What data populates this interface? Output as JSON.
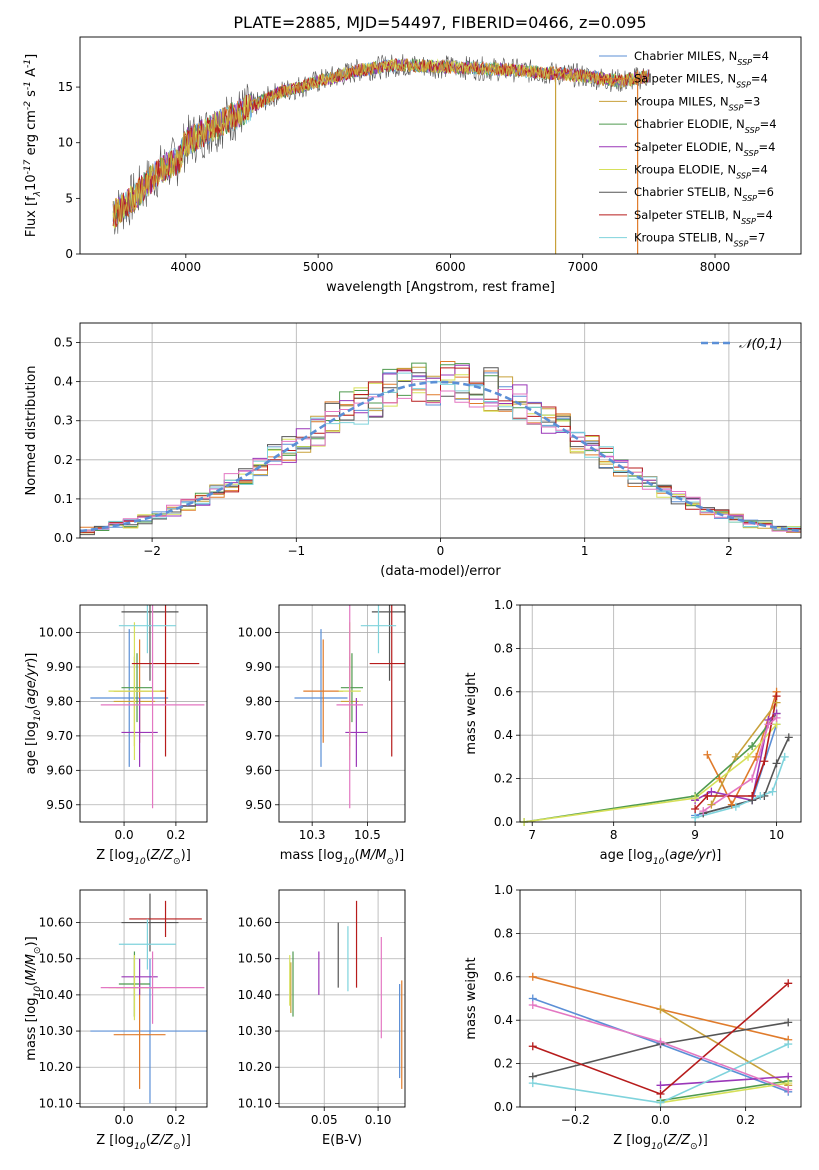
{
  "figure_title": "PLATE=2885, MJD=54497, FIBERID=0466, z=0.095",
  "chart_data": [
    {
      "id": "spectrum",
      "type": "line",
      "xlabel": "wavelength [Angstrom, rest frame]",
      "ylabel": "Flux [f$_\\lambda$10$^{-17}$ erg cm$^{-2}$ s$^{-1}$ A$^{-1}$]",
      "xlim": [
        3200,
        8650
      ],
      "ylim": [
        0,
        19.5
      ],
      "xticks": [
        4000,
        5000,
        6000,
        7000,
        8000
      ],
      "yticks": [
        0,
        5,
        10,
        15
      ],
      "grid": false,
      "legend_position": "top-right",
      "series": [
        {
          "name": "Chabrier MILES, N$_{SSP}$=4",
          "color": "#5b8fd6"
        },
        {
          "name": "Salpeter MILES, N$_{SSP}$=4",
          "color": "#e07b2b"
        },
        {
          "name": "Kroupa MILES, N$_{SSP}$=3",
          "color": "#c8a13a"
        },
        {
          "name": "Chabrier ELODIE, N$_{SSP}$=4",
          "color": "#4f9a4f"
        },
        {
          "name": "Salpeter ELODIE, N$_{SSP}$=4",
          "color": "#9a37b8"
        },
        {
          "name": "Kroupa ELODIE, N$_{SSP}$=4",
          "color": "#d6e05a"
        },
        {
          "name": "Chabrier STELIB, N$_{SSP}$=6",
          "color": "#555555"
        },
        {
          "name": "Salpeter STELIB, N$_{SSP}$=4",
          "color": "#b71c1c"
        },
        {
          "name": "Kroupa STELIB, N$_{SSP}$=7",
          "color": "#7fd3dc"
        }
      ],
      "continuum": {
        "x": [
          3450,
          3600,
          3800,
          3950,
          4000,
          4300,
          4700,
          5000,
          5300,
          5600,
          6000,
          6500,
          6800,
          7000,
          7300,
          7500
        ],
        "y": [
          3.5,
          5.0,
          7.5,
          8.5,
          10.0,
          12.0,
          14.5,
          15.5,
          16.5,
          17.0,
          16.8,
          16.5,
          16.2,
          16.0,
          15.5,
          16.0
        ]
      }
    },
    {
      "id": "residuals",
      "type": "line",
      "xlabel": "(data-model)/error",
      "ylabel": "Normed distribution",
      "xlim": [
        -2.5,
        2.5
      ],
      "ylim": [
        0,
        0.55
      ],
      "xticks": [
        -2,
        -1,
        0,
        1,
        2
      ],
      "yticks": [
        0.0,
        0.1,
        0.2,
        0.3,
        0.4,
        0.5
      ],
      "grid": true,
      "legend_position": "top-right",
      "reference_curve": {
        "name": "$\\mathcal{N}(0,1)$",
        "mean": 0,
        "sigma": 1,
        "color": "#5b8fd6"
      }
    },
    {
      "id": "age-vs-Z",
      "type": "scatter",
      "xlabel": "Z [log$_{10}$($Z/Z_\\odot$)]",
      "ylabel": "age  [log$_{10}$($age/yr$)]",
      "xlim": [
        -0.17,
        0.32
      ],
      "ylim": [
        9.45,
        10.08
      ],
      "xticks": [
        0.0,
        0.2
      ],
      "yticks": [
        9.5,
        9.6,
        9.7,
        9.8,
        9.9,
        10.0
      ],
      "grid": true,
      "points": [
        {
          "x": 0.02,
          "y": 9.81,
          "xerr": 0.15,
          "yerr": 0.2,
          "color": "#5b8fd6"
        },
        {
          "x": 0.06,
          "y": 9.83,
          "xerr": 0.1,
          "yerr": 0.15,
          "color": "#e07b2b"
        },
        {
          "x": 0.04,
          "y": 9.8,
          "xerr": 0.08,
          "yerr": 0.13,
          "color": "#c8a13a"
        },
        {
          "x": 0.05,
          "y": 9.84,
          "xerr": 0.06,
          "yerr": 0.1,
          "color": "#4f9a4f"
        },
        {
          "x": 0.06,
          "y": 9.71,
          "xerr": 0.07,
          "yerr": 0.1,
          "color": "#9a37b8"
        },
        {
          "x": 0.04,
          "y": 9.83,
          "xerr": 0.1,
          "yerr": 0.2,
          "color": "#d6e05a"
        },
        {
          "x": 0.1,
          "y": 10.06,
          "xerr": 0.11,
          "yerr": 0.2,
          "color": "#555555"
        },
        {
          "x": 0.16,
          "y": 9.91,
          "xerr": 0.13,
          "yerr": 0.27,
          "color": "#b71c1c"
        },
        {
          "x": 0.09,
          "y": 10.02,
          "xerr": 0.11,
          "yerr": 0.08,
          "color": "#7fd3dc"
        },
        {
          "x": 0.11,
          "y": 9.79,
          "xerr": 0.2,
          "yerr": 0.3,
          "color": "#e377c2"
        }
      ]
    },
    {
      "id": "age-vs-mass",
      "type": "scatter",
      "xlabel": "mass [log$_{10}$($M/M_\\odot$)]",
      "ylabel": "",
      "xlim": [
        10.1,
        10.67
      ],
      "ylim": [
        9.45,
        10.08
      ],
      "xticks": [
        10.25,
        10.5
      ],
      "yticks": [
        9.5,
        9.6,
        9.7,
        9.8,
        9.9,
        10.0
      ],
      "grid": true,
      "points": [
        {
          "x": 10.29,
          "y": 9.81,
          "xerr": 0.12,
          "yerr": 0.2,
          "color": "#5b8fd6"
        },
        {
          "x": 10.3,
          "y": 9.83,
          "xerr": 0.09,
          "yerr": 0.15,
          "color": "#e07b2b"
        },
        {
          "x": 10.42,
          "y": 9.8,
          "xerr": 0.04,
          "yerr": 0.13,
          "color": "#c8a13a"
        },
        {
          "x": 10.43,
          "y": 9.84,
          "xerr": 0.05,
          "yerr": 0.1,
          "color": "#4f9a4f"
        },
        {
          "x": 10.45,
          "y": 9.71,
          "xerr": 0.05,
          "yerr": 0.1,
          "color": "#9a37b8"
        },
        {
          "x": 10.42,
          "y": 9.83,
          "xerr": 0.05,
          "yerr": 0.2,
          "color": "#d6e05a"
        },
        {
          "x": 10.6,
          "y": 10.06,
          "xerr": 0.08,
          "yerr": 0.2,
          "color": "#555555"
        },
        {
          "x": 10.61,
          "y": 9.91,
          "xerr": 0.1,
          "yerr": 0.27,
          "color": "#b71c1c"
        },
        {
          "x": 10.55,
          "y": 10.02,
          "xerr": 0.08,
          "yerr": 0.08,
          "color": "#7fd3dc"
        },
        {
          "x": 10.42,
          "y": 9.79,
          "xerr": 0.06,
          "yerr": 0.3,
          "color": "#e377c2"
        }
      ]
    },
    {
      "id": "mass-weight-vs-age",
      "type": "line",
      "xlabel": "age  [log$_{10}$($age/yr$)]",
      "ylabel": "mass weight",
      "xlim": [
        6.85,
        10.3
      ],
      "ylim": [
        0,
        1
      ],
      "xticks": [
        7,
        8,
        9,
        10
      ],
      "yticks": [
        0.0,
        0.2,
        0.4,
        0.6,
        0.8,
        1.0
      ],
      "grid": true,
      "series": [
        {
          "color": "#5b8fd6",
          "x": [
            9.0,
            9.7,
            10.0
          ],
          "y": [
            0.03,
            0.1,
            0.45
          ]
        },
        {
          "color": "#e07b2b",
          "x": [
            9.15,
            9.3,
            9.45,
            9.75,
            10.0
          ],
          "y": [
            0.31,
            0.2,
            0.08,
            0.3,
            0.6
          ]
        },
        {
          "color": "#c8a13a",
          "x": [
            9.2,
            9.5,
            10.0
          ],
          "y": [
            0.08,
            0.3,
            0.55
          ]
        },
        {
          "color": "#4f9a4f",
          "x": [
            6.9,
            9.0,
            9.7,
            10.0
          ],
          "y": [
            0.0,
            0.12,
            0.35,
            0.5
          ]
        },
        {
          "color": "#9a37b8",
          "x": [
            9.0,
            9.2,
            9.7,
            9.9,
            10.0
          ],
          "y": [
            0.1,
            0.14,
            0.1,
            0.47,
            0.5
          ]
        },
        {
          "color": "#d6e05a",
          "x": [
            6.9,
            9.0,
            9.65,
            10.0
          ],
          "y": [
            0.0,
            0.11,
            0.3,
            0.45
          ]
        },
        {
          "color": "#555555",
          "x": [
            9.1,
            9.7,
            9.85,
            10.0,
            10.15
          ],
          "y": [
            0.04,
            0.1,
            0.12,
            0.27,
            0.39
          ]
        },
        {
          "color": "#b71c1c",
          "x": [
            9.0,
            9.15,
            9.7,
            9.85,
            10.0
          ],
          "y": [
            0.06,
            0.12,
            0.12,
            0.28,
            0.58
          ]
        },
        {
          "color": "#7fd3dc",
          "x": [
            9.0,
            9.5,
            9.8,
            9.95,
            10.1
          ],
          "y": [
            0.02,
            0.07,
            0.12,
            0.14,
            0.3
          ]
        },
        {
          "color": "#e377c2",
          "x": [
            9.1,
            9.7,
            9.9,
            10.0
          ],
          "y": [
            0.05,
            0.2,
            0.45,
            0.48
          ]
        }
      ]
    },
    {
      "id": "mass-vs-Z",
      "type": "scatter",
      "xlabel": "Z [log$_{10}$($Z/Z_\\odot$)]",
      "ylabel": "mass [log$_{10}$($M/M_\\odot$)]",
      "xlim": [
        -0.17,
        0.32
      ],
      "ylim": [
        10.09,
        10.69
      ],
      "xticks": [
        0.0,
        0.2
      ],
      "yticks": [
        10.1,
        10.2,
        10.3,
        10.4,
        10.5,
        10.6
      ],
      "grid": true,
      "points": [
        {
          "x": 0.1,
          "y": 10.3,
          "xerr": 0.23,
          "yerr": 0.2,
          "color": "#5b8fd6"
        },
        {
          "x": 0.06,
          "y": 10.29,
          "xerr": 0.1,
          "yerr": 0.15,
          "color": "#e07b2b"
        },
        {
          "x": 0.04,
          "y": 10.42,
          "xerr": 0.07,
          "yerr": 0.08,
          "color": "#c8a13a"
        },
        {
          "x": 0.04,
          "y": 10.43,
          "xerr": 0.06,
          "yerr": 0.09,
          "color": "#4f9a4f"
        },
        {
          "x": 0.06,
          "y": 10.45,
          "xerr": 0.07,
          "yerr": 0.05,
          "color": "#9a37b8"
        },
        {
          "x": 0.04,
          "y": 10.42,
          "xerr": 0.1,
          "yerr": 0.09,
          "color": "#d6e05a"
        },
        {
          "x": 0.1,
          "y": 10.6,
          "xerr": 0.11,
          "yerr": 0.08,
          "color": "#555555"
        },
        {
          "x": 0.16,
          "y": 10.61,
          "xerr": 0.14,
          "yerr": 0.05,
          "color": "#b71c1c"
        },
        {
          "x": 0.09,
          "y": 10.54,
          "xerr": 0.11,
          "yerr": 0.07,
          "color": "#7fd3dc"
        },
        {
          "x": 0.11,
          "y": 10.42,
          "xerr": 0.2,
          "yerr": 0.1,
          "color": "#e377c2"
        }
      ]
    },
    {
      "id": "mass-vs-EBV",
      "type": "scatter",
      "xlabel": "E(B-V)",
      "ylabel": "",
      "xlim": [
        0.008,
        0.125
      ],
      "ylim": [
        10.09,
        10.69
      ],
      "xticks": [
        0.05,
        0.1
      ],
      "yticks": [
        10.1,
        10.2,
        10.3,
        10.4,
        10.5,
        10.6
      ],
      "grid": true,
      "points": [
        {
          "x": 0.12,
          "y": 10.3,
          "yerr": 0.13,
          "color": "#5b8fd6"
        },
        {
          "x": 0.122,
          "y": 10.29,
          "yerr": 0.15,
          "color": "#e07b2b"
        },
        {
          "x": 0.019,
          "y": 10.42,
          "yerr": 0.07,
          "color": "#c8a13a"
        },
        {
          "x": 0.021,
          "y": 10.43,
          "yerr": 0.09,
          "color": "#4f9a4f"
        },
        {
          "x": 0.045,
          "y": 10.46,
          "yerr": 0.06,
          "color": "#9a37b8"
        },
        {
          "x": 0.018,
          "y": 10.44,
          "yerr": 0.07,
          "color": "#d6e05a"
        },
        {
          "x": 0.063,
          "y": 10.51,
          "yerr": 0.09,
          "color": "#555555"
        },
        {
          "x": 0.08,
          "y": 10.54,
          "yerr": 0.12,
          "color": "#b71c1c"
        },
        {
          "x": 0.072,
          "y": 10.5,
          "yerr": 0.09,
          "color": "#7fd3dc"
        },
        {
          "x": 0.103,
          "y": 10.42,
          "yerr": 0.14,
          "color": "#e377c2"
        }
      ]
    },
    {
      "id": "mass-weight-vs-Z",
      "type": "line",
      "xlabel": "Z [log$_{10}$($Z/Z_\\odot$)]",
      "ylabel": "mass weight",
      "xlim": [
        -0.33,
        0.33
      ],
      "ylim": [
        0,
        1
      ],
      "xticks": [
        -0.2,
        0.0,
        0.2
      ],
      "yticks": [
        0.0,
        0.2,
        0.4,
        0.6,
        0.8,
        1.0
      ],
      "grid": true,
      "series": [
        {
          "color": "#5b8fd6",
          "x": [
            -0.3,
            0.0,
            0.3
          ],
          "y": [
            0.5,
            0.29,
            0.07
          ]
        },
        {
          "color": "#e07b2b",
          "x": [
            -0.3,
            0.0,
            0.3
          ],
          "y": [
            0.6,
            0.45,
            0.31
          ]
        },
        {
          "color": "#c8a13a",
          "x": [
            0.0,
            0.3
          ],
          "y": [
            0.45,
            0.1
          ]
        },
        {
          "color": "#4f9a4f",
          "x": [
            0.0,
            0.3
          ],
          "y": [
            0.03,
            0.12
          ]
        },
        {
          "color": "#9a37b8",
          "x": [
            0.0,
            0.3
          ],
          "y": [
            0.1,
            0.14
          ]
        },
        {
          "color": "#d6e05a",
          "x": [
            0.0,
            0.3
          ],
          "y": [
            0.02,
            0.11
          ]
        },
        {
          "color": "#555555",
          "x": [
            -0.3,
            0.0,
            0.3
          ],
          "y": [
            0.14,
            0.29,
            0.39
          ]
        },
        {
          "color": "#b71c1c",
          "x": [
            -0.3,
            0.0,
            0.3
          ],
          "y": [
            0.28,
            0.06,
            0.57
          ]
        },
        {
          "color": "#7fd3dc",
          "x": [
            -0.3,
            0.0,
            0.3
          ],
          "y": [
            0.11,
            0.02,
            0.29
          ]
        },
        {
          "color": "#e377c2",
          "x": [
            -0.3,
            0.0,
            0.3
          ],
          "y": [
            0.47,
            0.3,
            0.08
          ]
        }
      ]
    }
  ]
}
